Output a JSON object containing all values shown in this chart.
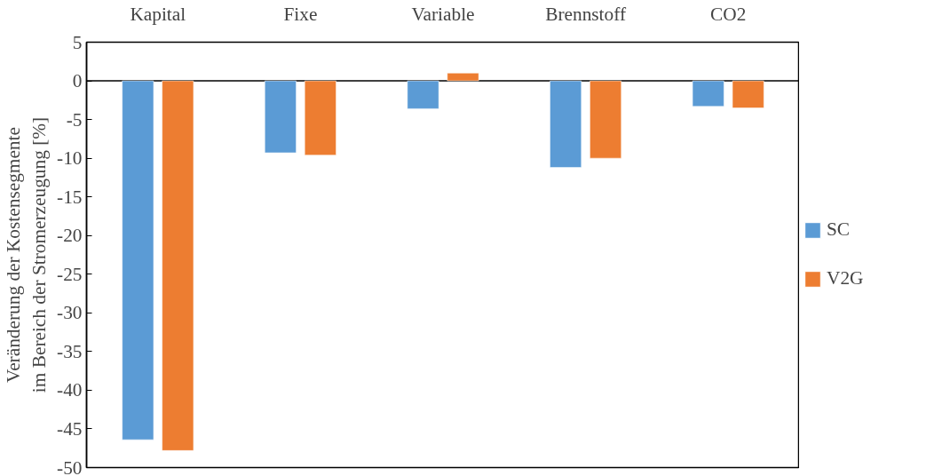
{
  "chart_data": {
    "type": "bar",
    "ylabel": "Veränderung der Kostensegmente\nim Bereich der Stromerzeugung [%]",
    "categories": [
      "Kapital",
      "Fixe",
      "Variable",
      "Brennstoff",
      "CO2"
    ],
    "series": [
      {
        "name": "SC",
        "color": "#5b9bd5",
        "values": [
          -46.4,
          -9.3,
          -3.6,
          -11.2,
          -3.3
        ]
      },
      {
        "name": "V2G",
        "color": "#ed7d31",
        "values": [
          -47.8,
          -9.6,
          1.0,
          -10.0,
          -3.5
        ]
      }
    ],
    "ylim": [
      -50,
      5
    ],
    "yticks": [
      -50,
      -45,
      -40,
      -35,
      -30,
      -25,
      -20,
      -15,
      -10,
      -5,
      0,
      5
    ],
    "legend": "right"
  }
}
